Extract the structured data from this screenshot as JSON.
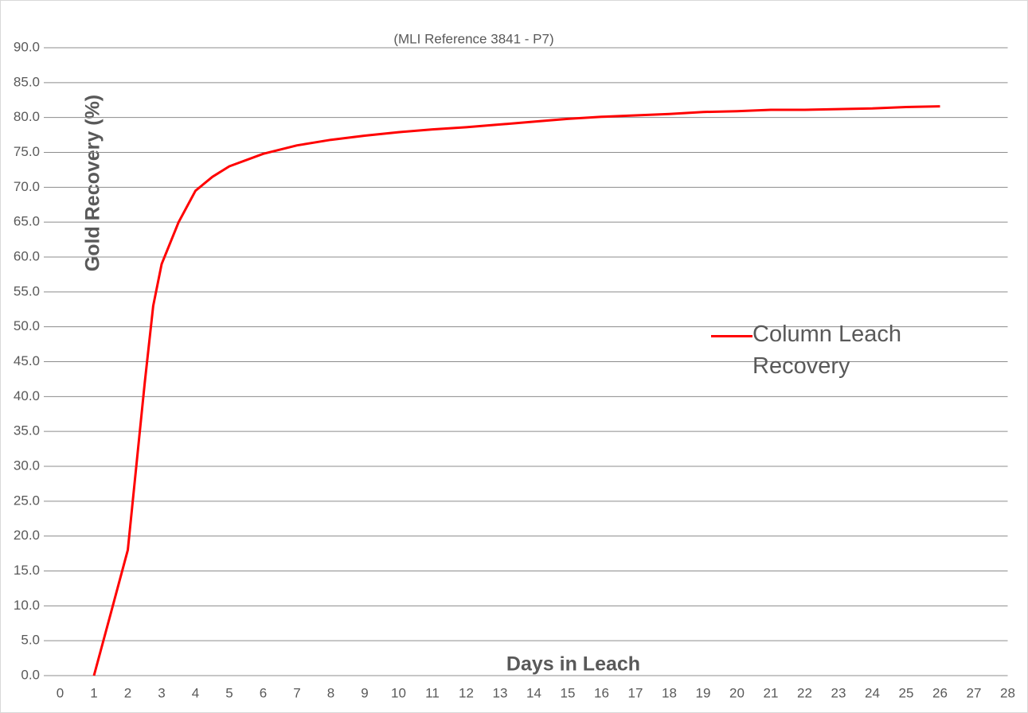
{
  "chart_data": {
    "type": "line",
    "title": "(MLI Reference 3841 - P7)",
    "x_label": "Days in Leach",
    "y_label": "Gold Recovery (%)",
    "x": [
      1,
      1.5,
      2,
      2.5,
      2.75,
      3,
      3.5,
      4,
      4.5,
      5,
      6,
      7,
      8,
      9,
      10,
      11,
      12,
      13,
      14,
      15,
      16,
      17,
      18,
      19,
      20,
      21,
      22,
      23,
      24,
      25,
      26
    ],
    "series": [
      {
        "name": "Column Leach Recovery",
        "color": "#ff0000",
        "values": [
          0,
          9,
          18,
          42,
          53,
          59,
          65,
          69.5,
          71.5,
          73,
          74.8,
          76,
          76.8,
          77.4,
          77.9,
          78.3,
          78.6,
          79,
          79.4,
          79.8,
          80.1,
          80.3,
          80.5,
          80.8,
          80.9,
          81.1,
          81.1,
          81.2,
          81.3,
          81.5,
          81.6
        ]
      }
    ],
    "xlim": [
      0,
      28
    ],
    "xticks": [
      0,
      1,
      2,
      3,
      4,
      5,
      6,
      7,
      8,
      9,
      10,
      11,
      12,
      13,
      14,
      15,
      16,
      17,
      18,
      19,
      20,
      21,
      22,
      23,
      24,
      25,
      26,
      27,
      28
    ],
    "ylim": [
      0,
      90
    ],
    "yticks": [
      {
        "value": 0,
        "label": "0.0"
      },
      {
        "value": 5,
        "label": "5.0"
      },
      {
        "value": 10,
        "label": "10.0"
      },
      {
        "value": 15,
        "label": "15.0"
      },
      {
        "value": 20,
        "label": "20.0"
      },
      {
        "value": 25,
        "label": "25.0"
      },
      {
        "value": 30,
        "label": "30.0"
      },
      {
        "value": 35,
        "label": "35.0"
      },
      {
        "value": 40,
        "label": "40.0"
      },
      {
        "value": 45,
        "label": "45.0"
      },
      {
        "value": 50,
        "label": "50.0"
      },
      {
        "value": 55,
        "label": "55.0"
      },
      {
        "value": 60,
        "label": "60.0"
      },
      {
        "value": 65,
        "label": "65.0"
      },
      {
        "value": 70,
        "label": "70.0"
      },
      {
        "value": 75,
        "label": "75.0"
      },
      {
        "value": 80,
        "label": "80.0"
      },
      {
        "value": 85,
        "label": "85.0"
      },
      {
        "value": 90,
        "label": "90.0"
      }
    ],
    "grid": true
  }
}
